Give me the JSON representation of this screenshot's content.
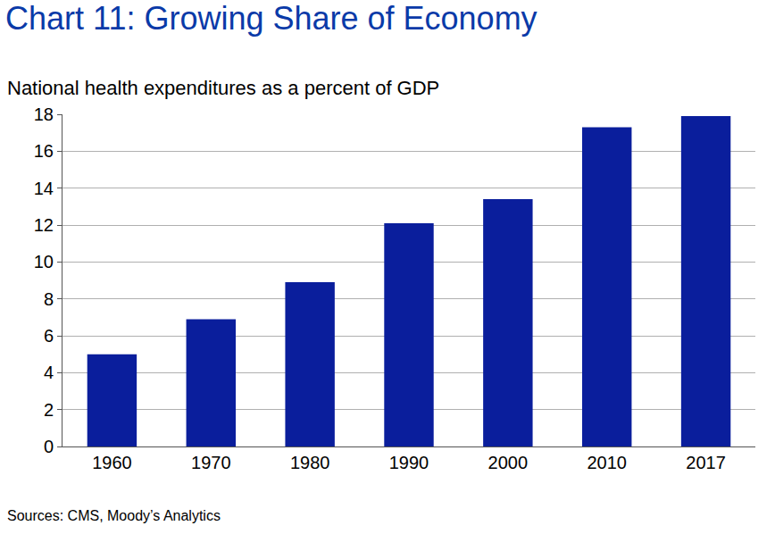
{
  "chart_data": {
    "type": "bar",
    "title": "Chart 11: Growing Share of Economy",
    "subtitle": "National health expenditures as a percent of GDP",
    "source": "Sources: CMS, Moody’s Analytics",
    "categories": [
      "1960",
      "1970",
      "1980",
      "1990",
      "2000",
      "2010",
      "2017"
    ],
    "values": [
      5.0,
      6.9,
      8.9,
      12.1,
      13.4,
      17.3,
      17.9
    ],
    "color": "#0a1e9c",
    "ylim": [
      0,
      18
    ],
    "yticks": [
      0,
      2,
      4,
      6,
      8,
      10,
      12,
      14,
      16,
      18
    ],
    "grid": true
  }
}
